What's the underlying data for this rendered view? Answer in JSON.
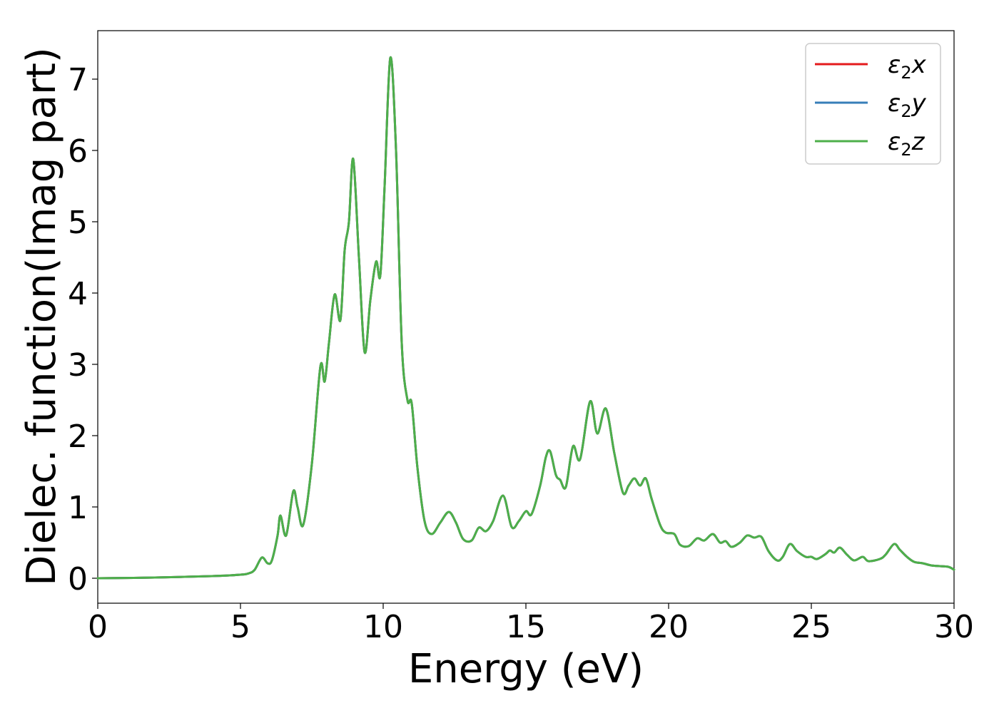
{
  "chart_data": {
    "type": "line",
    "xlabel": "Energy (eV)",
    "ylabel": "Dielec. function(Imag part)",
    "xlim": [
      0,
      30
    ],
    "ylim": [
      -0.35,
      7.68
    ],
    "x_ticks": [
      "0",
      "5",
      "10",
      "15",
      "20",
      "25",
      "30"
    ],
    "y_ticks": [
      "0",
      "1",
      "2",
      "3",
      "4",
      "5",
      "6",
      "7"
    ],
    "grid": false,
    "legend_position": "top-right",
    "series": [
      {
        "name": "ε₂x",
        "legend_base": "ε",
        "legend_sub": "2",
        "legend_var": "x",
        "color": "#e41a1c"
      },
      {
        "name": "ε₂y",
        "legend_base": "ε",
        "legend_sub": "2",
        "legend_var": "y",
        "color": "#377eb8"
      },
      {
        "name": "ε₂z",
        "legend_base": "ε",
        "legend_sub": "2",
        "legend_var": "z",
        "color": "#4daf4a"
      }
    ],
    "points": [
      [
        0,
        0.0
      ],
      [
        2,
        0.01
      ],
      [
        4,
        0.03
      ],
      [
        5,
        0.05
      ],
      [
        5.3,
        0.07
      ],
      [
        5.5,
        0.12
      ],
      [
        5.75,
        0.29
      ],
      [
        5.95,
        0.21
      ],
      [
        6.1,
        0.25
      ],
      [
        6.3,
        0.6
      ],
      [
        6.4,
        0.88
      ],
      [
        6.6,
        0.6
      ],
      [
        6.85,
        1.22
      ],
      [
        7.0,
        1.0
      ],
      [
        7.2,
        0.75
      ],
      [
        7.5,
        1.6
      ],
      [
        7.8,
        2.97
      ],
      [
        7.95,
        2.76
      ],
      [
        8.1,
        3.3
      ],
      [
        8.3,
        3.98
      ],
      [
        8.5,
        3.62
      ],
      [
        8.65,
        4.6
      ],
      [
        8.8,
        5.0
      ],
      [
        8.95,
        5.88
      ],
      [
        9.15,
        4.5
      ],
      [
        9.35,
        3.17
      ],
      [
        9.55,
        3.9
      ],
      [
        9.75,
        4.44
      ],
      [
        9.9,
        4.25
      ],
      [
        10.05,
        5.5
      ],
      [
        10.25,
        7.3
      ],
      [
        10.45,
        6.0
      ],
      [
        10.65,
        3.3
      ],
      [
        10.85,
        2.5
      ],
      [
        11.0,
        2.45
      ],
      [
        11.2,
        1.55
      ],
      [
        11.45,
        0.8
      ],
      [
        11.7,
        0.62
      ],
      [
        12.0,
        0.78
      ],
      [
        12.3,
        0.93
      ],
      [
        12.55,
        0.78
      ],
      [
        12.8,
        0.55
      ],
      [
        13.1,
        0.53
      ],
      [
        13.35,
        0.71
      ],
      [
        13.6,
        0.66
      ],
      [
        13.85,
        0.8
      ],
      [
        14.2,
        1.16
      ],
      [
        14.5,
        0.72
      ],
      [
        14.75,
        0.8
      ],
      [
        15.0,
        0.94
      ],
      [
        15.2,
        0.9
      ],
      [
        15.5,
        1.3
      ],
      [
        15.7,
        1.7
      ],
      [
        15.85,
        1.78
      ],
      [
        16.05,
        1.45
      ],
      [
        16.2,
        1.38
      ],
      [
        16.4,
        1.28
      ],
      [
        16.65,
        1.85
      ],
      [
        16.9,
        1.67
      ],
      [
        17.25,
        2.48
      ],
      [
        17.5,
        2.03
      ],
      [
        17.8,
        2.38
      ],
      [
        18.1,
        1.75
      ],
      [
        18.4,
        1.2
      ],
      [
        18.6,
        1.3
      ],
      [
        18.8,
        1.4
      ],
      [
        19.0,
        1.3
      ],
      [
        19.2,
        1.4
      ],
      [
        19.4,
        1.12
      ],
      [
        19.7,
        0.75
      ],
      [
        19.9,
        0.64
      ],
      [
        20.2,
        0.62
      ],
      [
        20.4,
        0.47
      ],
      [
        20.7,
        0.45
      ],
      [
        21.0,
        0.56
      ],
      [
        21.25,
        0.53
      ],
      [
        21.55,
        0.62
      ],
      [
        21.8,
        0.5
      ],
      [
        22.0,
        0.52
      ],
      [
        22.2,
        0.44
      ],
      [
        22.5,
        0.5
      ],
      [
        22.75,
        0.6
      ],
      [
        23.0,
        0.57
      ],
      [
        23.25,
        0.58
      ],
      [
        23.5,
        0.38
      ],
      [
        23.8,
        0.25
      ],
      [
        24.0,
        0.3
      ],
      [
        24.25,
        0.48
      ],
      [
        24.5,
        0.38
      ],
      [
        24.8,
        0.3
      ],
      [
        25.0,
        0.3
      ],
      [
        25.2,
        0.27
      ],
      [
        25.5,
        0.34
      ],
      [
        25.65,
        0.39
      ],
      [
        25.8,
        0.36
      ],
      [
        26.0,
        0.43
      ],
      [
        26.25,
        0.33
      ],
      [
        26.5,
        0.25
      ],
      [
        26.8,
        0.3
      ],
      [
        27.0,
        0.24
      ],
      [
        27.4,
        0.27
      ],
      [
        27.6,
        0.33
      ],
      [
        27.9,
        0.48
      ],
      [
        28.1,
        0.4
      ],
      [
        28.35,
        0.3
      ],
      [
        28.6,
        0.23
      ],
      [
        28.9,
        0.21
      ],
      [
        29.2,
        0.18
      ],
      [
        29.5,
        0.17
      ],
      [
        29.8,
        0.16
      ],
      [
        30.0,
        0.12
      ]
    ]
  }
}
